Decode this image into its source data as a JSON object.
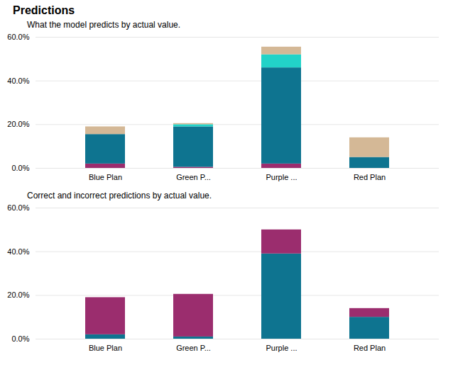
{
  "chart_data": [
    {
      "type": "bar",
      "title": "Predictions",
      "subtitle": "What the model predicts by actual value.",
      "categories": [
        "Blue Plan",
        "Green P...",
        "Purple ...",
        "Red Plan"
      ],
      "stacked": true,
      "series": [
        {
          "color": "#9B2D6E",
          "values": [
            0.02,
            0.005,
            0.02,
            0.0
          ]
        },
        {
          "color": "#0E7490",
          "values": [
            0.135,
            0.185,
            0.44,
            0.05
          ]
        },
        {
          "color": "#22D3C8",
          "values": [
            0.0,
            0.01,
            0.06,
            0.0
          ]
        },
        {
          "color": "#D4B896",
          "values": [
            0.035,
            0.005,
            0.035,
            0.09
          ]
        }
      ],
      "ylim": [
        0,
        0.6
      ],
      "yticks": [
        {
          "value": 0.0,
          "label": "0.0%"
        },
        {
          "value": 0.2,
          "label": "20.0%"
        },
        {
          "value": 0.4,
          "label": "40.0%"
        },
        {
          "value": 0.6,
          "label": "60.0%"
        }
      ],
      "grid": true
    },
    {
      "type": "bar",
      "subtitle": "Correct and incorrect predictions by actual value.",
      "categories": [
        "Blue Plan",
        "Green P...",
        "Purple ...",
        "Red Plan"
      ],
      "stacked": true,
      "series": [
        {
          "color": "#0E7490",
          "values": [
            0.02,
            0.01,
            0.39,
            0.1
          ]
        },
        {
          "color": "#9B2D6E",
          "values": [
            0.17,
            0.195,
            0.11,
            0.04
          ]
        }
      ],
      "ylim": [
        0,
        0.6
      ],
      "yticks": [
        {
          "value": 0.0,
          "label": "0.0%"
        },
        {
          "value": 0.2,
          "label": "20.0%"
        },
        {
          "value": 0.4,
          "label": "40.0%"
        },
        {
          "value": 0.6,
          "label": "60.0%"
        }
      ],
      "grid": true
    }
  ]
}
